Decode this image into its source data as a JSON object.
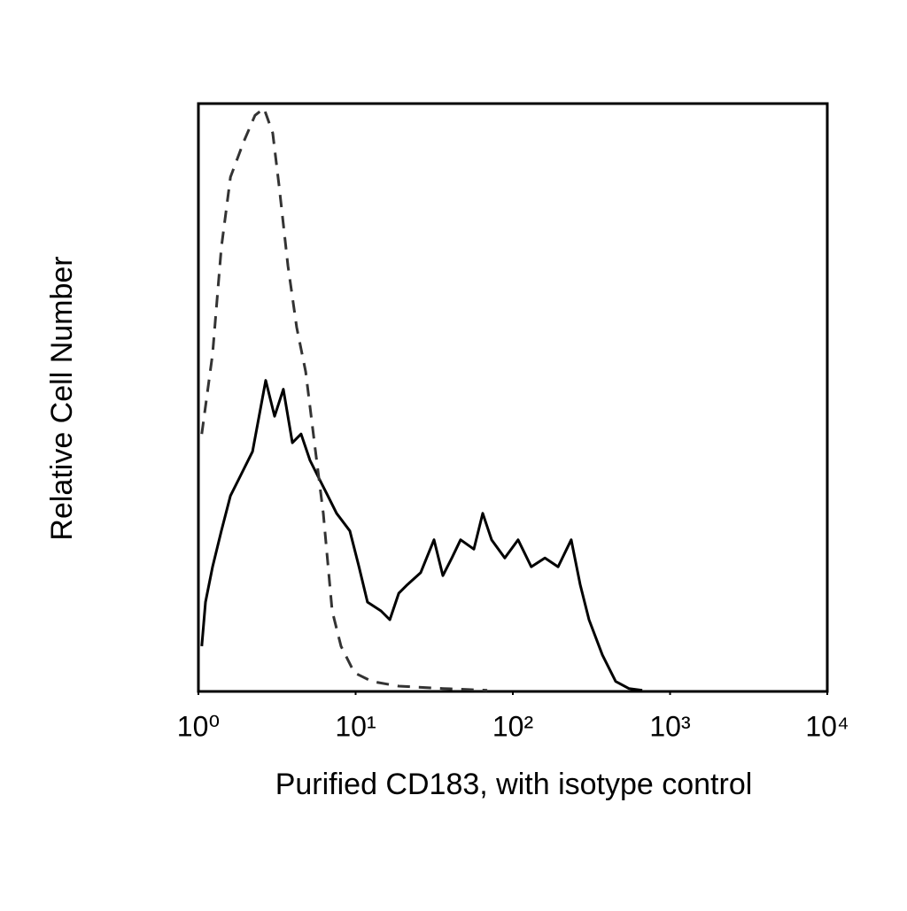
{
  "chart_data": {
    "type": "line",
    "x_label": "Purified CD183, with isotype control",
    "y_label": "Relative Cell Number",
    "log_x": true,
    "xlim": [
      1,
      10000
    ],
    "xticks": [
      {
        "value": 1,
        "label": "10⁰"
      },
      {
        "value": 10,
        "label": "10¹"
      },
      {
        "value": 100,
        "label": "10²"
      },
      {
        "value": 1000,
        "label": "10³"
      },
      {
        "value": 10000,
        "label": "10⁴"
      }
    ],
    "ylim": [
      0,
      100
    ],
    "series": [
      {
        "color": "#000000",
        "dash": false,
        "x": [
          1.05,
          1.11,
          1.23,
          1.4,
          1.6,
          1.82,
          2.21,
          2.68,
          3.05,
          3.47,
          3.96,
          4.5,
          5.13,
          5.84,
          6.65,
          7.57,
          9.19,
          10.5,
          11.9,
          14.5,
          16.5,
          18.8,
          21.4,
          25.9,
          31.5,
          35.9,
          40.9,
          46.5,
          56.5,
          64.3,
          73.2,
          88.9,
          108,
          131,
          160,
          194,
          235,
          268,
          305,
          371,
          451,
          547,
          665
        ],
        "values": [
          7.7,
          15.2,
          21.2,
          27.3,
          33.3,
          36.3,
          40.8,
          52.9,
          46.8,
          51.4,
          42.3,
          43.8,
          39.3,
          36.3,
          33.3,
          30.3,
          27.3,
          21.2,
          15.2,
          13.7,
          12.2,
          16.7,
          18.2,
          20.2,
          25.8,
          19.7,
          22.7,
          25.8,
          24.2,
          30.3,
          25.8,
          22.7,
          25.8,
          21.2,
          22.7,
          21.2,
          25.8,
          18.2,
          12.2,
          6.2,
          1.7,
          0.5,
          0.2
        ]
      },
      {
        "color": "#333333",
        "dash": true,
        "x": [
          1.05,
          1.23,
          1.4,
          1.6,
          1.94,
          2.29,
          2.61,
          2.97,
          3.26,
          3.71,
          4.22,
          4.81,
          5.47,
          6.23,
          7.09,
          8.07,
          9.81,
          12.7,
          18.8,
          35.9,
          68.7
        ],
        "values": [
          43.8,
          57.4,
          75.5,
          87.5,
          93.5,
          98,
          99.2,
          95,
          86,
          72.4,
          61.9,
          54.4,
          42.3,
          30.3,
          13.7,
          7.7,
          3.2,
          1.7,
          0.9,
          0.5,
          0.2
        ]
      }
    ]
  }
}
